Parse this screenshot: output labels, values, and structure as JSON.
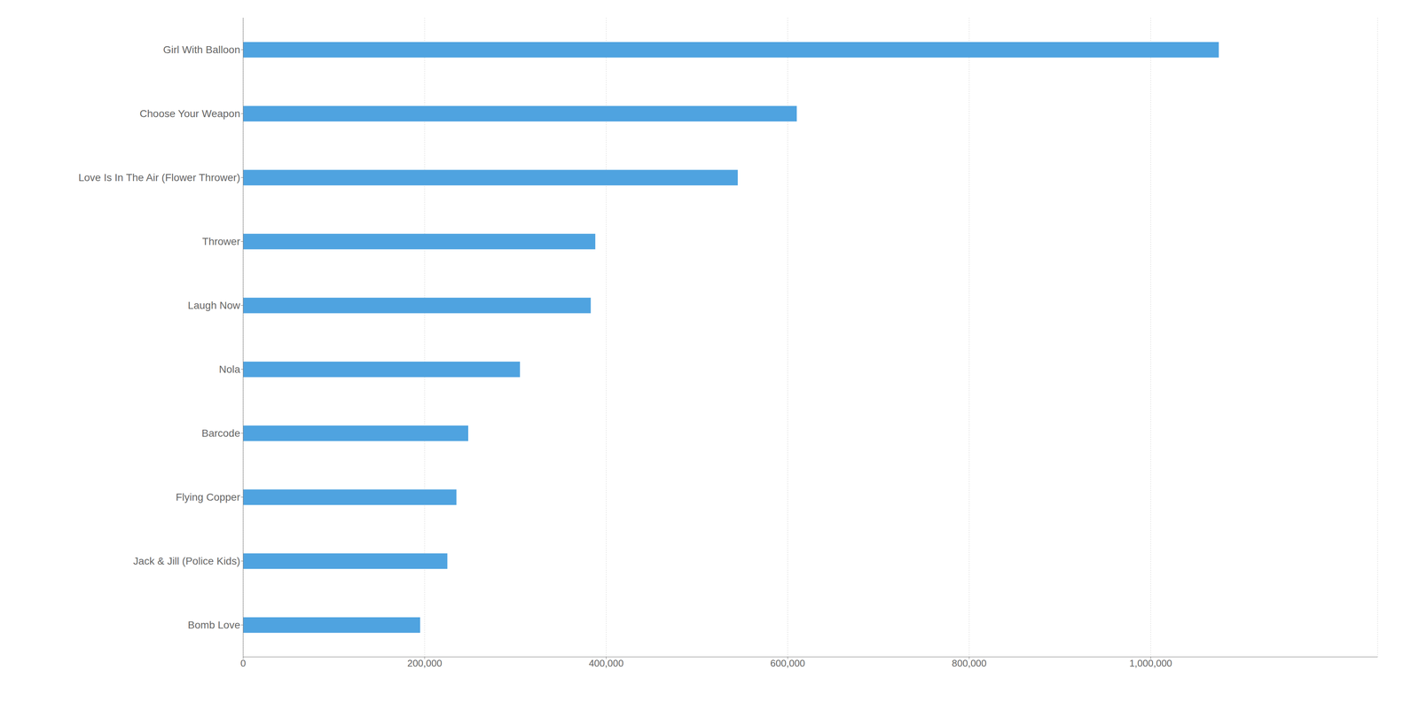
{
  "chart_data": {
    "type": "bar",
    "orientation": "horizontal",
    "categories": [
      "Bomb Love",
      "Jack & Jill (Police Kids)",
      "Flying Copper",
      "Barcode",
      "Nola",
      "Laugh Now",
      "Thrower",
      "Love Is In The Air (Flower Thrower)",
      "Choose Your Weapon",
      "Girl With Balloon"
    ],
    "values": [
      195000,
      225000,
      235000,
      248000,
      305000,
      383000,
      388000,
      545000,
      610000,
      1075000
    ],
    "color": "#4fa3e0",
    "xlim": [
      0,
      1250000
    ],
    "xticks": [
      0,
      {
        "value": 200000,
        "label": "200,000"
      },
      {
        "value": 400000,
        "label": "400,000"
      },
      {
        "value": 600000,
        "label": "600,000"
      },
      {
        "value": 800000,
        "label": "800,000"
      },
      {
        "value": 1000000,
        "label": "1,000,000"
      }
    ],
    "grid": true
  }
}
